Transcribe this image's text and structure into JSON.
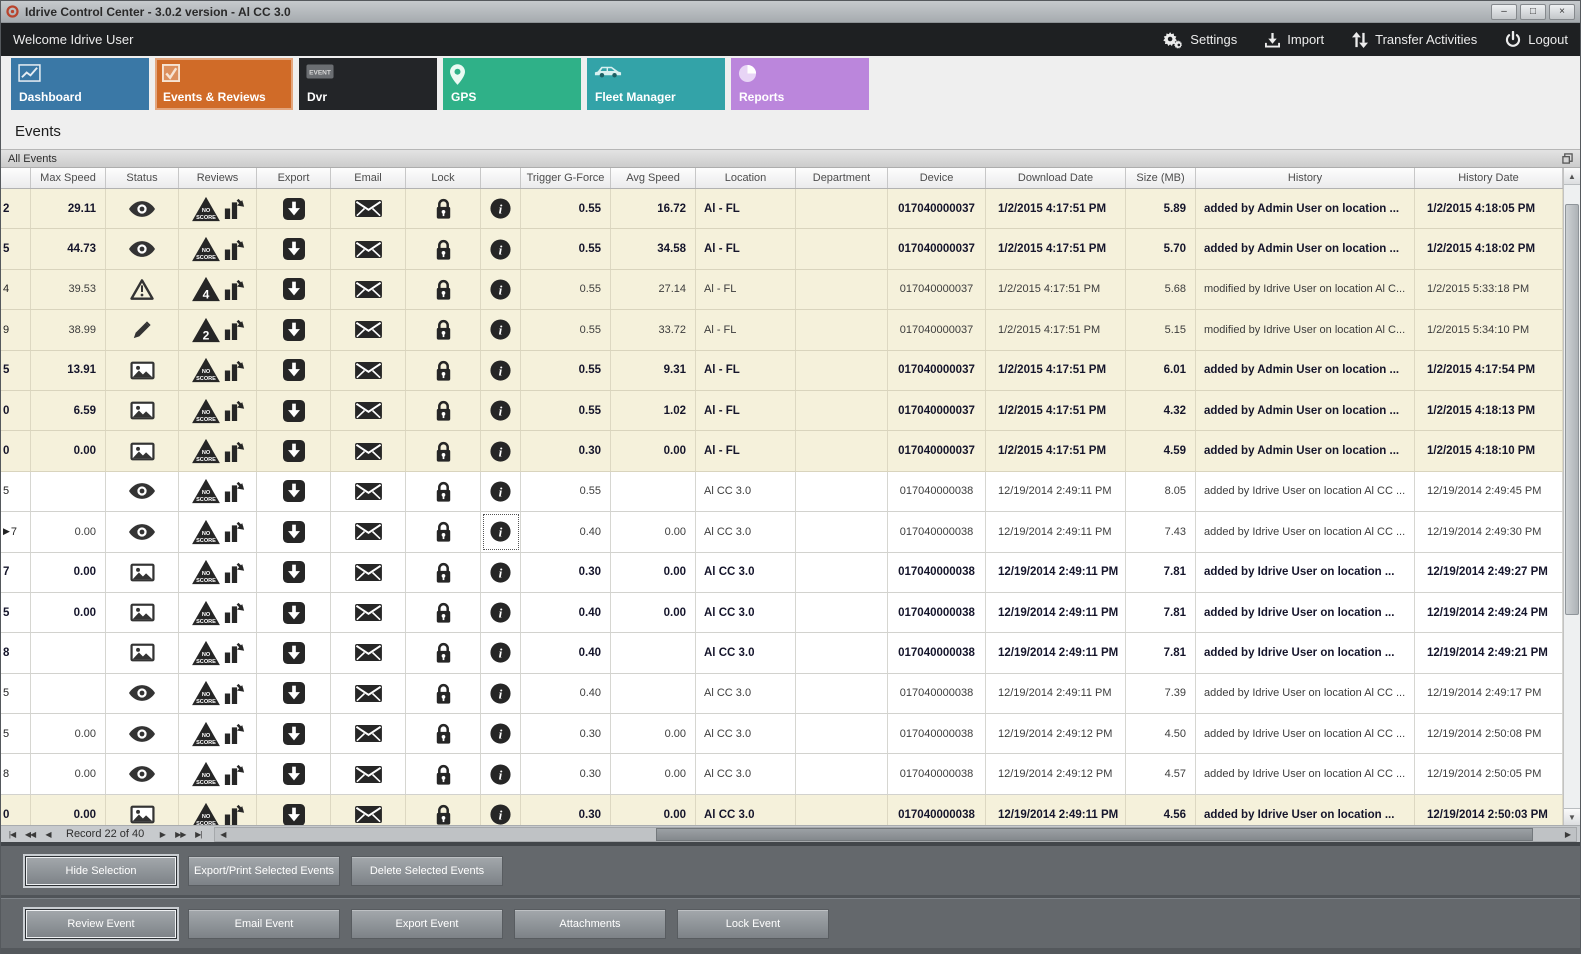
{
  "colors": {
    "row_beige": "#f5f1db",
    "selected_tab": "#d06b28",
    "menubar_bg": "#1e2022"
  },
  "window": {
    "title": "Idrive Control Center - 3.0.2 version - Al CC 3.0"
  },
  "icons": {
    "minimize": "–",
    "maximize": "□",
    "close": "×",
    "nav_first": "|◀",
    "nav_prev_page": "◀◀",
    "nav_prev": "◀",
    "nav_next": "▶",
    "nav_next_page": "▶▶",
    "nav_last": "▶|",
    "scroll_up": "▲",
    "scroll_down": "▼",
    "scroll_left": "◀",
    "scroll_right": "▶"
  },
  "menubar": {
    "welcome": "Welcome Idrive User",
    "settings": "Settings",
    "import": "Import",
    "transfer": "Transfer Activities",
    "logout": "Logout"
  },
  "tabs": [
    {
      "label": "Dashboard",
      "color": "#3a78a6",
      "selected": false
    },
    {
      "label": "Events & Reviews",
      "color": "#d06b28",
      "selected": true
    },
    {
      "label": "Dvr",
      "color": "#232528",
      "selected": false
    },
    {
      "label": "GPS",
      "color": "#2fb188",
      "selected": false
    },
    {
      "label": "Fleet Manager",
      "color": "#33a3a8",
      "selected": false
    },
    {
      "label": "Reports",
      "color": "#bb86dc",
      "selected": false
    }
  ],
  "section_title": "Events",
  "panel_title": "All Events",
  "grid": {
    "columns": [
      "",
      "Max Speed",
      "Status",
      "Reviews",
      "Export",
      "Email",
      "Lock",
      "",
      "Trigger G-Force",
      "Avg Speed",
      "Location",
      "Department",
      "Device",
      "Download Date",
      "Size (MB)",
      "History",
      "History Date"
    ],
    "rows": [
      {
        "id": "2",
        "indicator": false,
        "max": "29.11",
        "status": "eye",
        "score": "NO SCORE",
        "trigger": "0.55",
        "avg": "16.72",
        "location": "Al - FL",
        "department": "",
        "device": "017040000037",
        "download": "1/2/2015 4:17:51 PM",
        "size": "5.89",
        "history": "added by Admin User on location ...",
        "history_date": "1/2/2015 4:18:05 PM",
        "bold": true,
        "beige": true,
        "focused": false
      },
      {
        "id": "5",
        "indicator": false,
        "max": "44.73",
        "status": "eye",
        "score": "NO SCORE",
        "trigger": "0.55",
        "avg": "34.58",
        "location": "Al - FL",
        "department": "",
        "device": "017040000037",
        "download": "1/2/2015 4:17:51 PM",
        "size": "5.70",
        "history": "added by Admin User on location ...",
        "history_date": "1/2/2015 4:18:02 PM",
        "bold": true,
        "beige": true,
        "focused": false
      },
      {
        "id": "4",
        "indicator": false,
        "max": "39.53",
        "status": "warning",
        "score": "4",
        "trigger": "0.55",
        "avg": "27.14",
        "location": "Al - FL",
        "department": "",
        "device": "017040000037",
        "download": "1/2/2015 4:17:51 PM",
        "size": "5.68",
        "history": "modified by Idrive User on location Al C...",
        "history_date": "1/2/2015 5:33:18 PM",
        "bold": false,
        "beige": true,
        "focused": false
      },
      {
        "id": "9",
        "indicator": false,
        "max": "38.99",
        "status": "pencil",
        "score": "2",
        "trigger": "0.55",
        "avg": "33.72",
        "location": "Al - FL",
        "department": "",
        "device": "017040000037",
        "download": "1/2/2015 4:17:51 PM",
        "size": "5.15",
        "history": "modified by Idrive User on location Al C...",
        "history_date": "1/2/2015 5:34:10 PM",
        "bold": false,
        "beige": true,
        "focused": false
      },
      {
        "id": "5",
        "indicator": false,
        "max": "13.91",
        "status": "image",
        "score": "NO SCORE",
        "trigger": "0.55",
        "avg": "9.31",
        "location": "Al - FL",
        "department": "",
        "device": "017040000037",
        "download": "1/2/2015 4:17:51 PM",
        "size": "6.01",
        "history": "added by Admin User on location ...",
        "history_date": "1/2/2015 4:17:54 PM",
        "bold": true,
        "beige": true,
        "focused": false
      },
      {
        "id": "0",
        "indicator": false,
        "max": "6.59",
        "status": "image",
        "score": "NO SCORE",
        "trigger": "0.55",
        "avg": "1.02",
        "location": "Al - FL",
        "department": "",
        "device": "017040000037",
        "download": "1/2/2015 4:17:51 PM",
        "size": "4.32",
        "history": "added by Admin User on location ...",
        "history_date": "1/2/2015 4:18:13 PM",
        "bold": true,
        "beige": true,
        "focused": false
      },
      {
        "id": "0",
        "indicator": false,
        "max": "0.00",
        "status": "image",
        "score": "NO SCORE",
        "trigger": "0.30",
        "avg": "0.00",
        "location": "Al - FL",
        "department": "",
        "device": "017040000037",
        "download": "1/2/2015 4:17:51 PM",
        "size": "4.59",
        "history": "added by Admin User on location ...",
        "history_date": "1/2/2015 4:18:10 PM",
        "bold": true,
        "beige": true,
        "focused": false
      },
      {
        "id": "5",
        "indicator": false,
        "max": "",
        "status": "eye",
        "score": "NO SCORE",
        "trigger": "0.55",
        "avg": "",
        "location": "Al CC 3.0",
        "department": "",
        "device": "017040000038",
        "download": "12/19/2014 2:49:11 PM",
        "size": "8.05",
        "history": "added by Idrive User on location Al CC ...",
        "history_date": "12/19/2014 2:49:45 PM",
        "bold": false,
        "beige": false,
        "focused": false
      },
      {
        "id": "7",
        "indicator": true,
        "max": "0.00",
        "status": "eye",
        "score": "NO SCORE",
        "trigger": "0.40",
        "avg": "0.00",
        "location": "Al CC 3.0",
        "department": "",
        "device": "017040000038",
        "download": "12/19/2014 2:49:11 PM",
        "size": "7.43",
        "history": "added by Idrive User on location Al CC ...",
        "history_date": "12/19/2014 2:49:30 PM",
        "bold": false,
        "beige": false,
        "focused": true
      },
      {
        "id": "7",
        "indicator": false,
        "max": "0.00",
        "status": "image",
        "score": "NO SCORE",
        "trigger": "0.30",
        "avg": "0.00",
        "location": "Al CC 3.0",
        "department": "",
        "device": "017040000038",
        "download": "12/19/2014 2:49:11 PM",
        "size": "7.81",
        "history": "added by Idrive User on location ...",
        "history_date": "12/19/2014 2:49:27 PM",
        "bold": true,
        "beige": false,
        "focused": false
      },
      {
        "id": "5",
        "indicator": false,
        "max": "0.00",
        "status": "image",
        "score": "NO SCORE",
        "trigger": "0.40",
        "avg": "0.00",
        "location": "Al CC 3.0",
        "department": "",
        "device": "017040000038",
        "download": "12/19/2014 2:49:11 PM",
        "size": "7.81",
        "history": "added by Idrive User on location ...",
        "history_date": "12/19/2014 2:49:24 PM",
        "bold": true,
        "beige": false,
        "focused": false
      },
      {
        "id": "8",
        "indicator": false,
        "max": "",
        "status": "image",
        "score": "NO SCORE",
        "trigger": "0.40",
        "avg": "",
        "location": "Al CC 3.0",
        "department": "",
        "device": "017040000038",
        "download": "12/19/2014 2:49:11 PM",
        "size": "7.81",
        "history": "added by Idrive User on location ...",
        "history_date": "12/19/2014 2:49:21 PM",
        "bold": true,
        "beige": false,
        "focused": false
      },
      {
        "id": "5",
        "indicator": false,
        "max": "",
        "status": "eye",
        "score": "NO SCORE",
        "trigger": "0.40",
        "avg": "",
        "location": "Al CC 3.0",
        "department": "",
        "device": "017040000038",
        "download": "12/19/2014 2:49:11 PM",
        "size": "7.39",
        "history": "added by Idrive User on location Al CC ...",
        "history_date": "12/19/2014 2:49:17 PM",
        "bold": false,
        "beige": false,
        "focused": false
      },
      {
        "id": "5",
        "indicator": false,
        "max": "0.00",
        "status": "eye",
        "score": "NO SCORE",
        "trigger": "0.30",
        "avg": "0.00",
        "location": "Al CC 3.0",
        "department": "",
        "device": "017040000038",
        "download": "12/19/2014 2:49:12 PM",
        "size": "4.50",
        "history": "added by Idrive User on location Al CC ...",
        "history_date": "12/19/2014 2:50:08 PM",
        "bold": false,
        "beige": false,
        "focused": false
      },
      {
        "id": "8",
        "indicator": false,
        "max": "0.00",
        "status": "eye",
        "score": "NO SCORE",
        "trigger": "0.30",
        "avg": "0.00",
        "location": "Al CC 3.0",
        "department": "",
        "device": "017040000038",
        "download": "12/19/2014 2:49:12 PM",
        "size": "4.57",
        "history": "added by Idrive User on location Al CC ...",
        "history_date": "12/19/2014 2:50:05 PM",
        "bold": false,
        "beige": false,
        "focused": false
      },
      {
        "id": "0",
        "indicator": false,
        "max": "0.00",
        "status": "image",
        "score": "NO SCORE",
        "trigger": "0.30",
        "avg": "0.00",
        "location": "Al CC 3.0",
        "department": "",
        "device": "017040000038",
        "download": "12/19/2014 2:49:11 PM",
        "size": "4.56",
        "history": "added by Idrive User on location ...",
        "history_date": "12/19/2014 2:50:03 PM",
        "bold": true,
        "beige": true,
        "focused": false
      }
    ]
  },
  "navigator": {
    "record_text": "Record 22 of 40"
  },
  "action_buttons_top": [
    "Hide Selection",
    "Export/Print Selected Events",
    "Delete Selected  Events"
  ],
  "action_buttons_bottom": [
    "Review Event",
    "Email Event",
    "Export Event",
    "Attachments",
    "Lock Event"
  ]
}
